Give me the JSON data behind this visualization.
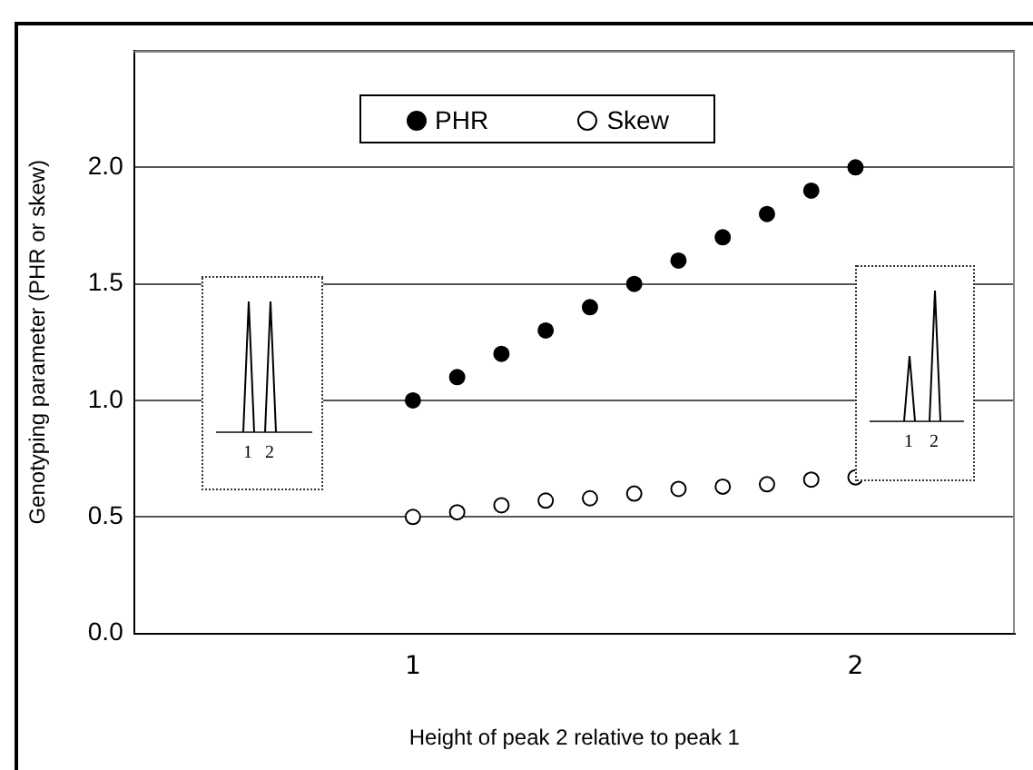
{
  "chart_data": {
    "type": "scatter",
    "xlabel": "Height of peak 2 relative to peak 1",
    "ylabel": "Genotyping parameter (PHR or skew)",
    "x": [
      1,
      1.1,
      1.2,
      1.3,
      1.4,
      1.5,
      1.6,
      1.7,
      1.8,
      1.9,
      2
    ],
    "series": [
      {
        "name": "PHR",
        "color": "#000000",
        "values": [
          1,
          1.1,
          1.2,
          1.3,
          1.4,
          1.5,
          1.6,
          1.7,
          1.8,
          1.9,
          2
        ]
      },
      {
        "name": "Skew",
        "color": "#ffffff",
        "values": [
          0.5,
          0.52,
          0.55,
          0.57,
          0.58,
          0.6,
          0.62,
          0.63,
          0.64,
          0.66,
          0.67
        ]
      }
    ],
    "xlim": [
      0.37,
      2.36
    ],
    "xticks": [
      1,
      2
    ],
    "ylim": [
      0,
      2.5
    ],
    "yticks": [
      {
        "value": 0,
        "label": "0.0"
      },
      {
        "value": 0.5,
        "label": "0.5"
      },
      {
        "value": 1,
        "label": "1.0"
      },
      {
        "value": 1.5,
        "label": "1.5"
      },
      {
        "value": 2,
        "label": "2.0"
      },
      {
        "value": 2.5,
        "label": null
      }
    ],
    "grid": "y",
    "legend": "top",
    "marker": "circle",
    "annotations": [
      "1",
      "2",
      "1",
      "2"
    ]
  }
}
